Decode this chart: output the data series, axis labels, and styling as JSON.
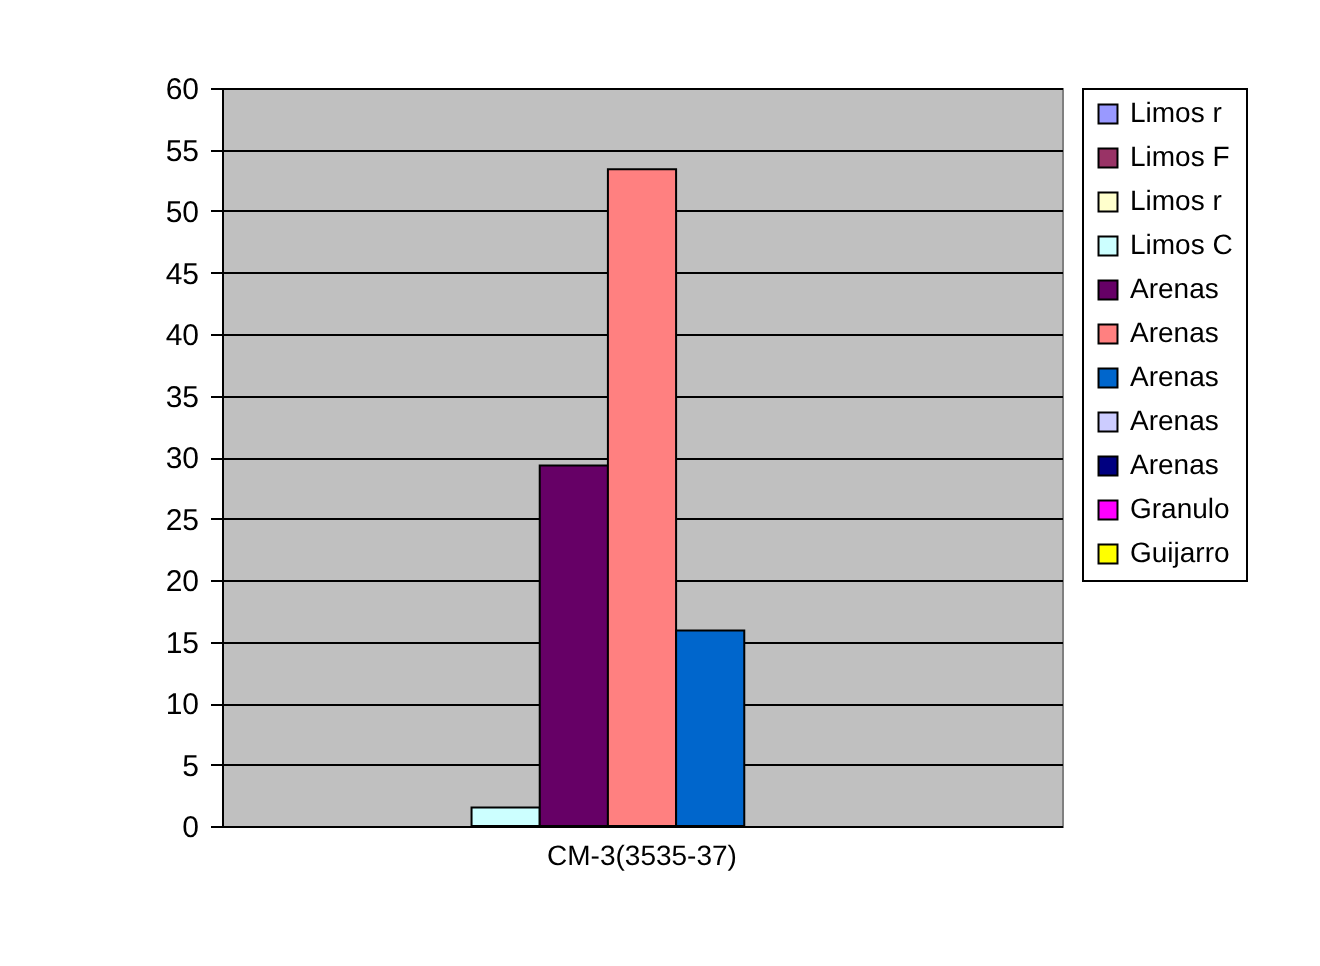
{
  "chart_data": {
    "type": "bar",
    "categories": [
      "CM-3(3535-37)"
    ],
    "series": [
      {
        "name": "Limos r",
        "color": "#9999ff",
        "values": [
          0
        ]
      },
      {
        "name": "Limos F",
        "color": "#993366",
        "values": [
          0
        ]
      },
      {
        "name": "Limos r",
        "color": "#ffffcc",
        "values": [
          0
        ]
      },
      {
        "name": "Limos C",
        "color": "#ccffff",
        "values": [
          1.5
        ]
      },
      {
        "name": "Arenas",
        "color": "#660066",
        "values": [
          29.3
        ]
      },
      {
        "name": "Arenas",
        "color": "#ff8080",
        "values": [
          53.4
        ]
      },
      {
        "name": "Arenas",
        "color": "#0066cc",
        "values": [
          15.9
        ]
      },
      {
        "name": "Arenas",
        "color": "#ccccff",
        "values": [
          0
        ]
      },
      {
        "name": "Arenas",
        "color": "#000080",
        "values": [
          0
        ]
      },
      {
        "name": "Granulo",
        "color": "#ff00ff",
        "values": [
          0
        ]
      },
      {
        "name": "Guijarro",
        "color": "#ffff00",
        "values": [
          0
        ]
      }
    ],
    "ylim": [
      0,
      60
    ],
    "yticks": [
      0,
      5,
      10,
      15,
      20,
      25,
      30,
      35,
      40,
      45,
      50,
      55,
      60
    ],
    "grid": "y",
    "legend": "right"
  }
}
